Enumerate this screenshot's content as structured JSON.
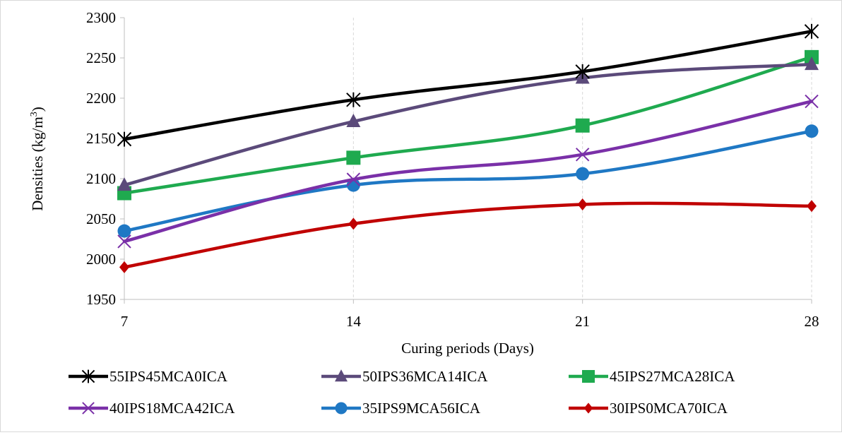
{
  "chart_data": {
    "type": "line",
    "x": [
      7,
      14,
      21,
      28
    ],
    "xlabel": "Curing periods (Days)",
    "ylabel": "Densities (kg/m",
    "ylabel_sup": "3",
    "ylabel_end": ")",
    "ylim": [
      1950,
      2300
    ],
    "yticks": [
      1950,
      2000,
      2050,
      2100,
      2150,
      2200,
      2250,
      2300
    ],
    "grid": "vertical dashed",
    "legend_position": "bottom",
    "series": [
      {
        "name": "55IPS45MCA0ICA",
        "color": "#000000",
        "marker": "asterisk",
        "values": [
          2149,
          2198,
          2233,
          2283
        ]
      },
      {
        "name": "50IPS36MCA14ICA",
        "color": "#5b4a7a",
        "marker": "triangle",
        "values": [
          2092,
          2171,
          2225,
          2242
        ]
      },
      {
        "name": "45IPS27MCA28ICA",
        "color": "#1faa4f",
        "marker": "square",
        "values": [
          2082,
          2126,
          2166,
          2251
        ]
      },
      {
        "name": "40IPS18MCA42ICA",
        "color": "#7a30a8",
        "marker": "x",
        "values": [
          2022,
          2099,
          2130,
          2196
        ]
      },
      {
        "name": "35IPS9MCA56ICA",
        "color": "#1f78c4",
        "marker": "circle",
        "values": [
          2035,
          2092,
          2106,
          2159
        ]
      },
      {
        "name": "30IPS0MCA70ICA",
        "color": "#c00000",
        "marker": "diamond",
        "values": [
          1990,
          2044,
          2068,
          2066
        ]
      }
    ]
  }
}
